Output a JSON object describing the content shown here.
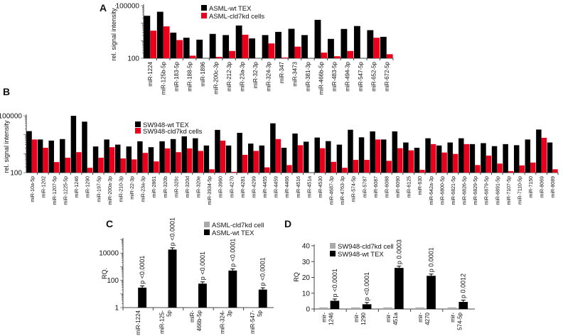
{
  "colors": {
    "wt": "#000000",
    "kd": "#e8001c",
    "kd_qpcr": "#aaaaaa"
  },
  "chart_data": [
    {
      "panel": "A",
      "type": "bar",
      "ylabel": "rel. signal intensity .",
      "yscale": "log",
      "ylim": [
        100,
        100000
      ],
      "yticks": [
        "100",
        "100000"
      ],
      "legend_placement": "top-center",
      "categories": [
        "miR-1224",
        "miR-125b-5p",
        "miR-183-5p",
        "miR-188-5p",
        "miR-1896",
        "miR-200c-3p",
        "miR-212-3p",
        "miR-23a-3p",
        "miR-32-3p",
        "miR-324-3p",
        "miR-347",
        "miR-3473",
        "miR-381-3p",
        "miR-466b-5p",
        "miR-483-5p",
        "miR-494-3p",
        "miR-547-5p",
        "miR-652-5p",
        "miR-672-5p"
      ],
      "series": [
        {
          "name": "ASML-wt TEX",
          "color": "#000000",
          "values": [
            26500,
            45000,
            2900,
            1480,
            1150,
            2450,
            2100,
            7400,
            1350,
            2100,
            3200,
            4800,
            2100,
            15600,
            1270,
            4700,
            6900,
            4000,
            1670
          ]
        },
        {
          "name": "ASML-cld7kd cells",
          "color": "#e8001c",
          "values": [
            3750,
            6600,
            1090,
            140,
            null,
            120,
            260,
            2200,
            null,
            700,
            110,
            460,
            null,
            210,
            130,
            260,
            null,
            1480,
            170
          ]
        }
      ]
    },
    {
      "panel": "B",
      "type": "bar",
      "ylabel": "rel. signal intensity .",
      "yscale": "log",
      "ylim": [
        100,
        100000
      ],
      "yticks": [
        "100",
        "100000"
      ],
      "legend_placement": "top-left",
      "categories": [
        "miR-10a-5p",
        "miR-1202",
        "miR-1207-5p",
        "miR-1225-5p",
        "miR-1246",
        "miR-1290",
        "miR-197-5p",
        "miR-200a-3p",
        "miR-210-3p",
        "miR-22-3p",
        "miR-23a-3p",
        "miR-2861",
        "miR-320b",
        "miR-320c",
        "miR-320d",
        "miR-320e",
        "miR-3934-5p",
        "miR-3960",
        "miR-4270",
        "miR-4281",
        "miR-4299",
        "miR-4455",
        "miR-4459",
        "miR-4466",
        "miR-4516",
        "miR-451a",
        "miR-4530",
        "miR-4687-3p",
        "miR-4763-3p",
        "miR-574-5p",
        "miR-5787",
        "miR-6087",
        "miR-6088",
        "miR-6090",
        "miR-6125",
        "miR-630",
        "miR-642a-3p",
        "miR-6800-5p",
        "miR-6821-5p",
        "miR-6826-5p",
        "miR-6829-5p",
        "miR-6879-5p",
        "miR-6891-5p",
        "miR-7107-5p",
        "miR-7110-5p",
        "miR-7150",
        "miR-8069",
        "miR-8089"
      ],
      "series": [
        {
          "name": "SW948-wt TEX",
          "color": "#000000",
          "values": [
            15500,
            5600,
            4900,
            5900,
            100000,
            49000,
            2400,
            5600,
            3000,
            2400,
            4500,
            2200,
            4500,
            5900,
            8200,
            6500,
            2700,
            18000,
            2700,
            12600,
            3400,
            2700,
            40000,
            2050,
            11600,
            4300,
            7100,
            4600,
            3000,
            18300,
            7300,
            15000,
            5600,
            15000,
            3900,
            2050,
            6500,
            2700,
            3900,
            6500,
            3200,
            3600,
            2500,
            3200,
            2800,
            5600,
            18800,
            3900
          ]
        },
        {
          "name": "SW948-cld7kd cells",
          "color": "#e8001c",
          "values": [
            5600,
            2050,
            360,
            610,
            1200,
            180,
            610,
            2200,
            560,
            500,
            1100,
            390,
            1900,
            1200,
            1900,
            1400,
            150,
            4900,
            110,
            870,
            1400,
            190,
            5900,
            250,
            2800,
            null,
            1950,
            370,
            180,
            470,
            470,
            5600,
            420,
            1950,
            1500,
            140,
            3200,
            1150,
            970,
            3200,
            250,
            790,
            300,
            120,
            240,
            340,
            6900,
            150
          ]
        }
      ]
    },
    {
      "panel": "C",
      "type": "bar",
      "ylabel": "RQ.",
      "yscale": "log",
      "ylim": [
        1,
        100000
      ],
      "yticks": [
        "1",
        "100",
        "10000"
      ],
      "legend_placement": "top-right",
      "categories": [
        "miR-1224",
        "miR-125-\n5p",
        "miR-\n466b-5p",
        "miR-324-\n3p",
        "miR-547-\n5p"
      ],
      "series": [
        {
          "name": "ASML-cld7kd cell",
          "color": "#aaaaaa",
          "values": [
            1,
            1,
            1,
            1,
            1
          ]
        },
        {
          "name": "ASML-wt TEX",
          "color": "#000000",
          "values": [
            29,
            18000,
            57,
            520,
            21
          ]
        }
      ],
      "annotations": [
        "p <0.0001",
        "p <0.0001",
        "p <0.0001",
        "p <0.0001",
        "p <0.0001"
      ]
    },
    {
      "panel": "D",
      "type": "bar",
      "ylabel": "RQ",
      "yscale": "linear",
      "ylim": [
        0,
        40
      ],
      "yticks": [
        "0",
        "10",
        "20",
        "30",
        "40"
      ],
      "legend_placement": "top-left",
      "categories": [
        "mir-\n1246",
        "mir-\n1290",
        "mir-\n451a",
        "mir-\n4270",
        "mir-\n574-5p"
      ],
      "series": [
        {
          "name": "SW948-cld7kd cell",
          "color": "#aaaaaa",
          "values": [
            1,
            1,
            1,
            1,
            1
          ]
        },
        {
          "name": "SW948-wt TEX",
          "color": "#000000",
          "values": [
            5.2,
            3,
            26,
            21,
            4.5
          ]
        }
      ],
      "annotations": [
        "p <0.0001",
        "p <0.0001",
        "p 0.0003",
        "p 0.0001",
        "p 0.0012"
      ]
    }
  ]
}
